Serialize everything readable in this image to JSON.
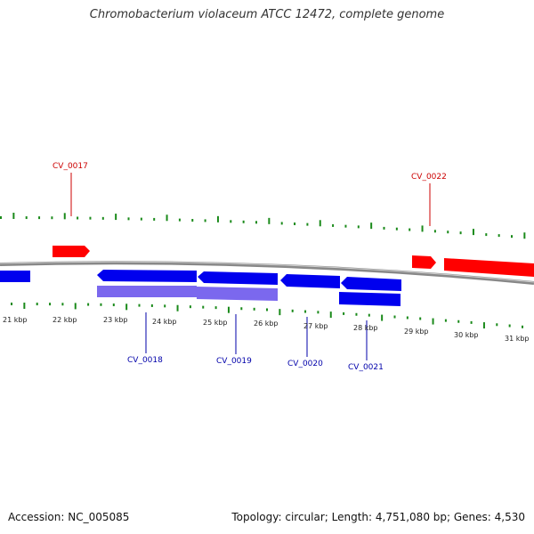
{
  "title": "Chromobacterium violaceum ATCC 12472, complete genome",
  "footer": {
    "accession": "Accession: NC_005085",
    "summary": "Topology: circular; Length: 4,751,080 bp; Genes: 4,530"
  },
  "colors": {
    "forward_feature": "#ff0000",
    "reverse_feature": "#0000ee",
    "rna_feature": "#7b68ee",
    "backbone": "#888888",
    "tick": "#1a8a1a",
    "forward_label": "#cc0000",
    "reverse_label": "#0000aa"
  },
  "kbp_labels": [
    "21 kbp",
    "22 kbp",
    "23 kbp",
    "24 kbp",
    "25 kbp",
    "26 kbp",
    "27 kbp",
    "28 kbp",
    "29 kbp",
    "30 kbp",
    "31 kbp"
  ],
  "gene_labels": [
    {
      "name": "CV_0017",
      "strand": "forward"
    },
    {
      "name": "CV_0022",
      "strand": "forward"
    },
    {
      "name": "CV_0018",
      "strand": "reverse"
    },
    {
      "name": "CV_0019",
      "strand": "reverse"
    },
    {
      "name": "CV_0020",
      "strand": "reverse"
    },
    {
      "name": "CV_0021",
      "strand": "reverse"
    }
  ]
}
